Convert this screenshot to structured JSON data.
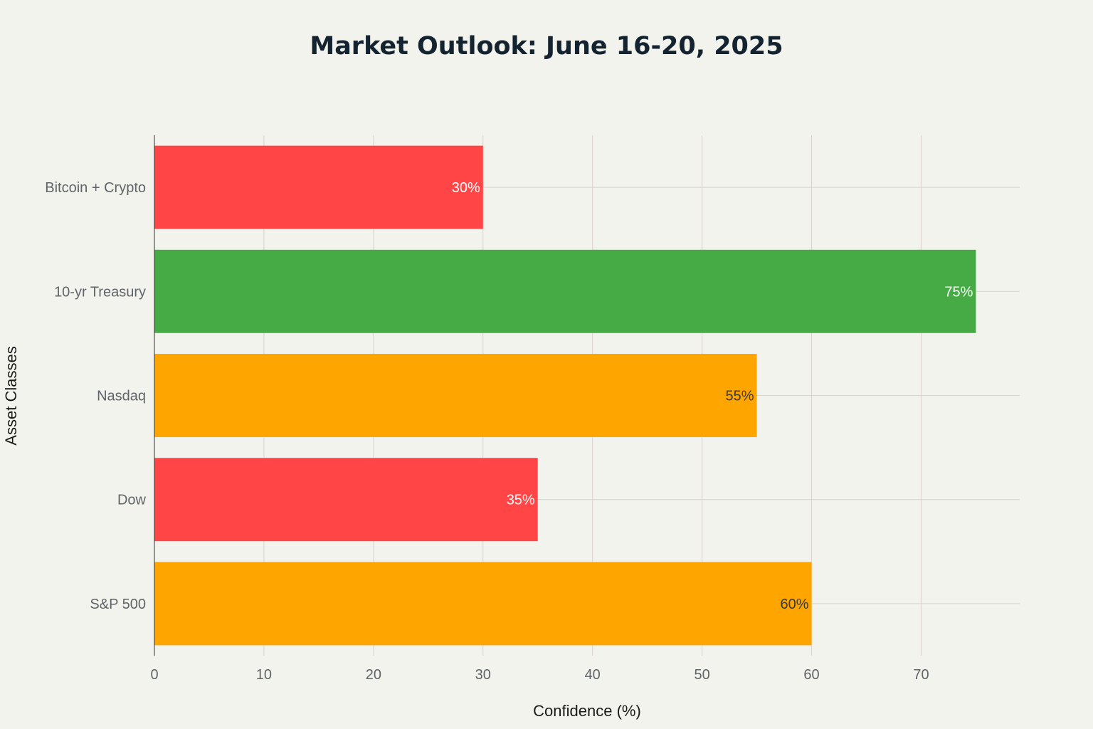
{
  "chart_data": {
    "type": "bar",
    "orientation": "horizontal",
    "title": "Market Outlook: June 16-20, 2025",
    "xlabel": "Confidence (%)",
    "ylabel": "Asset Classes",
    "xlim": [
      0,
      79
    ],
    "x_ticks": [
      0,
      10,
      20,
      30,
      40,
      50,
      60,
      70
    ],
    "grid": true,
    "legend": "none",
    "categories": [
      "Bitcoin + Crypto",
      "10-yr Treasury",
      "Nasdaq",
      "Dow",
      "S&P 500"
    ],
    "values": [
      30,
      75,
      55,
      35,
      60
    ],
    "value_labels": [
      "30%",
      "75%",
      "55%",
      "35%",
      "60%"
    ],
    "colors": [
      "#ff4545",
      "#46ab44",
      "#ffa500",
      "#ff4545",
      "#ffa500"
    ],
    "label_colors": [
      "#ffffff",
      "#ffffff",
      "#3a3a3a",
      "#ffffff",
      "#3a3a3a"
    ]
  }
}
